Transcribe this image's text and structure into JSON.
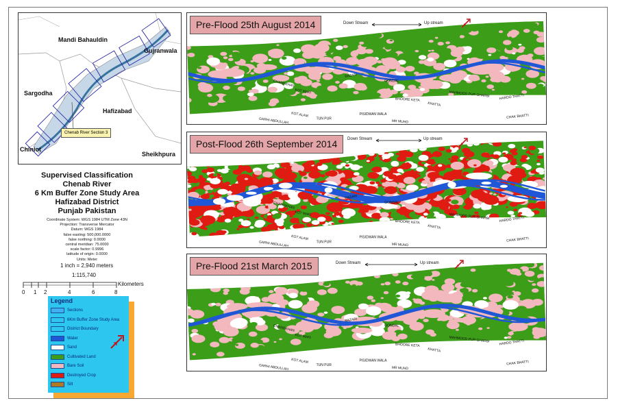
{
  "colors": {
    "water": "#1f57d6",
    "sand": "#ffffff",
    "cultivated": "#3c9e18",
    "bare_soil": "#f2b8bd",
    "destroyed_crop": "#e01b12",
    "silt": "#b07a22",
    "section_fill": "#3fb0f0",
    "legend_bg": "#2cc6ee",
    "legend_shadow": "#f7a832",
    "title_box": "#e3a5a8"
  },
  "inset_map": {
    "labels": {
      "mandi": "Mandi Bahauldin",
      "gujranwala": "Gujranwala",
      "sargodha": "Sargodha",
      "hafizabad": "Hafizabad",
      "chiniot": "Chiniot",
      "sheikhpura": "Sheikhpura"
    },
    "callout": "Chenab River Section 3"
  },
  "title_lines": [
    "Supervised Classification",
    "Chenab River",
    "6 Km Buffer Zone Study Area",
    "Hafizabad District",
    "Punjab Pakistan"
  ],
  "metadata_lines": [
    "Coordinate System: WGS 1984 UTM Zone 43N",
    "Projection: Transverse Mercator",
    "Datum: WGS 1984",
    "false easting: 500,000.0000",
    "false northing: 0.0000",
    "central meridian: 75.0000",
    "scale factor: 0.9996",
    "latitude of origin: 0.0000",
    "Units: Meter"
  ],
  "scale": {
    "inch": "1 inch = 2,940 meters",
    "ratio": "1:115,740",
    "unit": "Kilometers",
    "ticks": [
      "0",
      "1",
      "2",
      "4",
      "6",
      "8"
    ]
  },
  "legend": {
    "title": "Legend",
    "items": [
      {
        "label": "Sections",
        "color": "#3fb0f0"
      },
      {
        "label": "6Km Buffer Zone Study Area",
        "color": "#2cc6ee"
      },
      {
        "label": "District Boundary",
        "color": "#2cc6ee"
      },
      {
        "label": "Water",
        "color": "#1f57d6"
      },
      {
        "label": "Sand",
        "color": "#ffffff"
      },
      {
        "label": "Cultivated Land",
        "color": "#3c9e18"
      },
      {
        "label": "Bare Soil",
        "color": "#f2b8bd"
      },
      {
        "label": "Destroyed Crop",
        "color": "#e01b12"
      },
      {
        "label": "Silt",
        "color": "#b07a22"
      }
    ]
  },
  "direction": {
    "down": "Down Stream",
    "up": "Up stream"
  },
  "panels": [
    {
      "title": "Pre-Flood 25th August 2014",
      "kind": "pre"
    },
    {
      "title": "Post-Flood 26th September 2014",
      "kind": "post"
    },
    {
      "title": "Pre-Flood 21st March 2015",
      "kind": "pre2"
    }
  ],
  "villages": {
    "hardo": "HARDO THATTI",
    "chak": "CHAK BHATTI",
    "tunpur": "TUN PUR",
    "garhi": "GARHI ABDULLAH",
    "kotalam": "KOT ALAM",
    "pisidwan": "PISIDWAN WALA",
    "mrmuhd": "MR MUHD",
    "bazari": "BAZARI",
    "gondal": "GONDAL",
    "mahmood": "MAHMOOD PUR GHARBI",
    "bhoore": "BHOORE KETA",
    "khatta": "KHATTA",
    "kotmaki": "KOT MAKI",
    "chandkhan": "CHANDKHAN"
  }
}
